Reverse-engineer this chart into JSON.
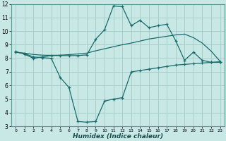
{
  "bg_color": "#c8e8e5",
  "grid_color": "#a8ceca",
  "line_color": "#1a6b6b",
  "marker": "+",
  "x_label": "Humidex (Indice chaleur)",
  "ylim": [
    3,
    12
  ],
  "xlim": [
    -0.5,
    23.5
  ],
  "yticks": [
    3,
    4,
    5,
    6,
    7,
    8,
    9,
    10,
    11,
    12
  ],
  "xticks": [
    0,
    1,
    2,
    3,
    4,
    5,
    6,
    7,
    8,
    9,
    10,
    11,
    12,
    13,
    14,
    15,
    16,
    17,
    18,
    19,
    20,
    21,
    22,
    23
  ],
  "line1_x": [
    0,
    1,
    2,
    3,
    4,
    5,
    6,
    7,
    8,
    9,
    10,
    11,
    12,
    13,
    14,
    15,
    16,
    17,
    18,
    19,
    20,
    21,
    22,
    23
  ],
  "line1_y": [
    8.5,
    8.3,
    8.0,
    8.1,
    8.2,
    8.2,
    8.2,
    8.2,
    8.25,
    9.4,
    10.1,
    11.85,
    11.8,
    10.4,
    10.8,
    10.25,
    10.4,
    10.5,
    9.3,
    7.85,
    8.45,
    7.85,
    7.7,
    7.7
  ],
  "line2_x": [
    0,
    1,
    2,
    3,
    4,
    5,
    6,
    7,
    8,
    9,
    10,
    11,
    12,
    13,
    14,
    15,
    16,
    17,
    18,
    19,
    20,
    21,
    22,
    23
  ],
  "line2_y": [
    8.45,
    8.38,
    8.28,
    8.23,
    8.22,
    8.23,
    8.27,
    8.32,
    8.38,
    8.55,
    8.7,
    8.85,
    9.0,
    9.12,
    9.27,
    9.42,
    9.52,
    9.62,
    9.72,
    9.78,
    9.52,
    9.12,
    8.52,
    7.78
  ],
  "line3_x": [
    0,
    1,
    2,
    3,
    4,
    5,
    6,
    7,
    8,
    9,
    10,
    11,
    12,
    13,
    14,
    15,
    16,
    17,
    18,
    19,
    20,
    21,
    22,
    23
  ],
  "line3_y": [
    8.45,
    8.35,
    8.1,
    8.05,
    8.0,
    6.6,
    5.85,
    3.35,
    3.3,
    3.35,
    4.85,
    5.0,
    5.1,
    7.0,
    7.1,
    7.2,
    7.3,
    7.4,
    7.5,
    7.55,
    7.6,
    7.65,
    7.7,
    7.75
  ]
}
